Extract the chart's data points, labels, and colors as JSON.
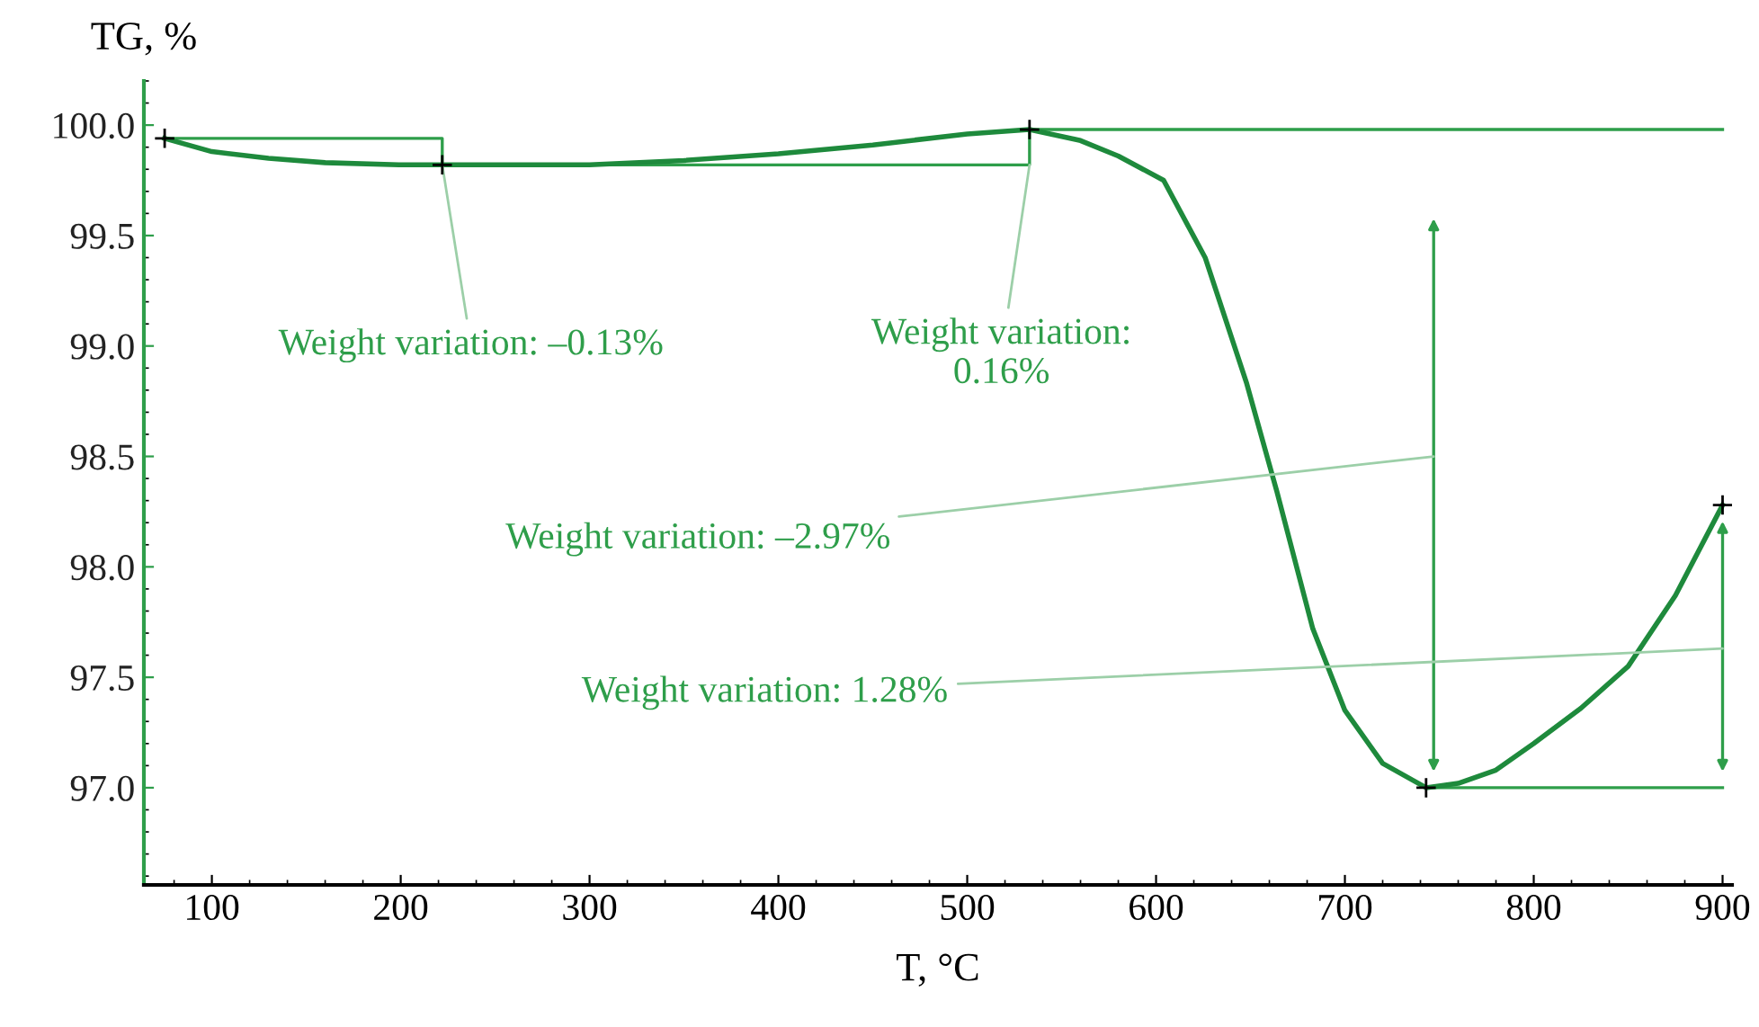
{
  "chart_data": {
    "type": "line",
    "xlabel": "T, °C",
    "ylabel": "TG, %",
    "xlim": [
      64,
      905
    ],
    "ylim": [
      96.56,
      100.2
    ],
    "xticks": [
      100,
      200,
      300,
      400,
      500,
      600,
      700,
      800,
      900
    ],
    "yticks": [
      {
        "value": 97,
        "label": "97.0"
      },
      {
        "value": 97.5,
        "label": "97.5"
      },
      {
        "value": 98,
        "label": "98.0"
      },
      {
        "value": 98.5,
        "label": "98.5"
      },
      {
        "value": 99,
        "label": "99.0"
      },
      {
        "value": 99.5,
        "label": "99.5"
      },
      {
        "value": 100,
        "label": "100.0"
      }
    ],
    "grid": false,
    "legend": false,
    "series": [
      {
        "color": "#1e8a3c",
        "x": [
          75,
          100,
          130,
          160,
          199,
          250,
          300,
          350,
          400,
          450,
          500,
          533,
          560,
          580,
          604,
          626,
          648,
          664,
          683,
          700,
          720,
          743,
          760,
          780,
          800,
          825,
          850,
          875,
          900
        ],
        "values": [
          99.94,
          99.88,
          99.85,
          99.83,
          99.82,
          99.82,
          99.82,
          99.84,
          99.87,
          99.91,
          99.96,
          99.98,
          99.93,
          99.86,
          99.75,
          99.4,
          98.83,
          98.34,
          97.72,
          97.35,
          97.11,
          97.0,
          97.02,
          97.08,
          97.2,
          97.36,
          97.55,
          97.87,
          98.28
        ]
      },
      {
        "type": "scatter",
        "marker": "cross",
        "color": "#000000",
        "x": [
          75,
          222,
          533,
          743,
          900
        ],
        "values": [
          99.94,
          99.82,
          99.98,
          97.0,
          98.28
        ]
      },
      {
        "type": "line",
        "color": "#2e9e4a",
        "x": [
          75,
          222,
          222
        ],
        "values": [
          99.94,
          99.94,
          99.82
        ]
      },
      {
        "type": "line",
        "color": "#2e9e4a",
        "x": [
          222,
          533,
          533
        ],
        "values": [
          99.82,
          99.82,
          99.98
        ]
      },
      {
        "type": "line",
        "color": "#2e9e4a",
        "x": [
          533,
          900
        ],
        "values": [
          99.98,
          99.98
        ]
      },
      {
        "type": "line",
        "color": "#2e9e4a",
        "x": [
          743,
          900
        ],
        "values": [
          97.0,
          97.0
        ]
      }
    ],
    "annotations": [
      {
        "text": "Weight variation: –0.13%",
        "x": 222,
        "y": 99.82
      },
      {
        "text": "Weight variation:\n0.16%",
        "x": 533,
        "y": 99.82
      },
      "Weight variation: –2.97%",
      "Weight variation: 1.28%"
    ]
  }
}
